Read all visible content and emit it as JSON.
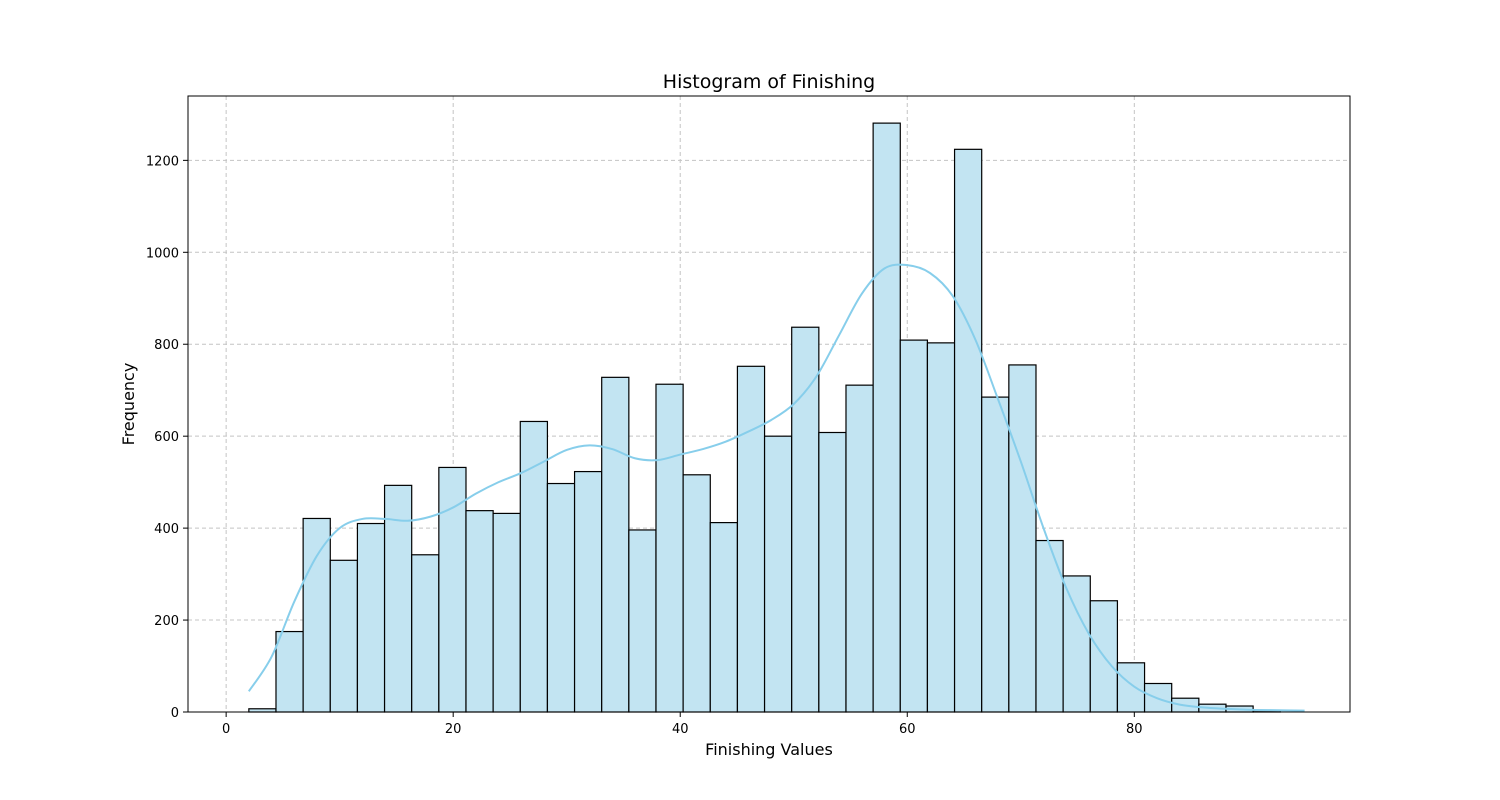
{
  "chart_data": {
    "type": "bar",
    "title": "Histogram of Finishing",
    "xlabel": "Finishing Values",
    "ylabel": "Frequency",
    "xlim": [
      -3.36,
      99.0
    ],
    "ylim": [
      0,
      1340
    ],
    "xticks": [
      0,
      20,
      40,
      60,
      80
    ],
    "yticks": [
      0,
      200,
      400,
      600,
      800,
      1000,
      1200
    ],
    "grid": true,
    "bin_width": 2.391,
    "bin_start": 2.0,
    "values": [
      7,
      175,
      421,
      330,
      410,
      493,
      342,
      532,
      438,
      432,
      632,
      497,
      523,
      728,
      396,
      713,
      516,
      412,
      752,
      600,
      837,
      608,
      711,
      1281,
      809,
      803,
      1224,
      685,
      755,
      373,
      296,
      242,
      107,
      62,
      30,
      17,
      13,
      3
    ],
    "kde": {
      "x": [
        2,
        4,
        6,
        8,
        10,
        12,
        14,
        16,
        18,
        20,
        22,
        24,
        26,
        28,
        30,
        32,
        34,
        36,
        38,
        40,
        42,
        44,
        46,
        48,
        50,
        52,
        54,
        56,
        58,
        60,
        62,
        64,
        66,
        68,
        70,
        72,
        74,
        76,
        78,
        80,
        82,
        84,
        86,
        88,
        90,
        92,
        95
      ],
      "y": [
        45,
        120,
        240,
        340,
        400,
        420,
        420,
        416,
        425,
        445,
        475,
        500,
        520,
        545,
        570,
        580,
        572,
        552,
        548,
        560,
        572,
        588,
        610,
        635,
        670,
        730,
        820,
        910,
        965,
        972,
        955,
        905,
        810,
        680,
        545,
        400,
        270,
        170,
        100,
        55,
        30,
        16,
        10,
        7,
        5,
        4,
        3
      ]
    },
    "colors": {
      "bar_fill": "#c2e4f2",
      "bar_edge": "#000000",
      "kde_line": "#87ceeb",
      "grid": "#c4c4c4"
    }
  }
}
